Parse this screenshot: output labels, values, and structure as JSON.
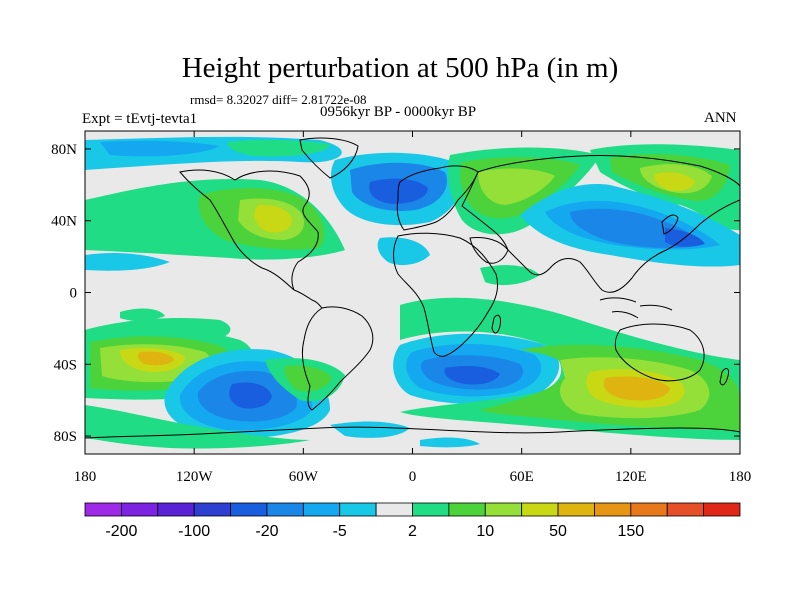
{
  "title": "Height perturbation at 500 hPa (in m)",
  "stats": "rmsd= 8.32027 diff= 2.81722e-08",
  "experiment": "Expt = tEvtj-tevta1",
  "period": "0956kyr BP - 0000kyr BP",
  "season": "ANN",
  "map": {
    "projection": "cylindrical equidistant",
    "lon_range": [
      -180,
      180
    ],
    "lat_range": [
      -90,
      90
    ],
    "x_ticks": [
      {
        "lon": -180,
        "label": "180"
      },
      {
        "lon": -120,
        "label": "120W"
      },
      {
        "lon": -60,
        "label": "60W"
      },
      {
        "lon": 0,
        "label": "0"
      },
      {
        "lon": 60,
        "label": "60E"
      },
      {
        "lon": 120,
        "label": "120E"
      },
      {
        "lon": 180,
        "label": "180"
      }
    ],
    "y_ticks": [
      {
        "lat": 80,
        "label": "80N"
      },
      {
        "lat": 40,
        "label": "40N"
      },
      {
        "lat": 0,
        "label": "0"
      },
      {
        "lat": -40,
        "label": "40S"
      },
      {
        "lat": -80,
        "label": "80S"
      }
    ]
  },
  "colorbar": {
    "colors": [
      "#9e2ae8",
      "#7d22e0",
      "#5a22d6",
      "#2f3fd2",
      "#1a5ee0",
      "#1a86e8",
      "#14a8f0",
      "#18c8e6",
      "#e9e9e9",
      "#20dc84",
      "#4cd23a",
      "#94e038",
      "#c8d814",
      "#e0b410",
      "#e69614",
      "#e8781c",
      "#e65028",
      "#e02818"
    ],
    "labels": [
      "-200",
      "-100",
      "-20",
      "-5",
      "2",
      "10",
      "50",
      "150"
    ]
  },
  "fields": {
    "colors": {
      "neutral": "#e9e9e9",
      "teal": "#20dc84",
      "green": "#4cd23a",
      "lightgreen": "#94e038",
      "yellowgreen": "#c8d814",
      "yellow": "#e0b410",
      "orange": "#e69614",
      "cyan": "#18c8e6",
      "lightblue": "#14a8f0",
      "blue": "#1a86e8",
      "darkblue": "#1a5ee0",
      "navy": "#2f3fd2"
    }
  }
}
